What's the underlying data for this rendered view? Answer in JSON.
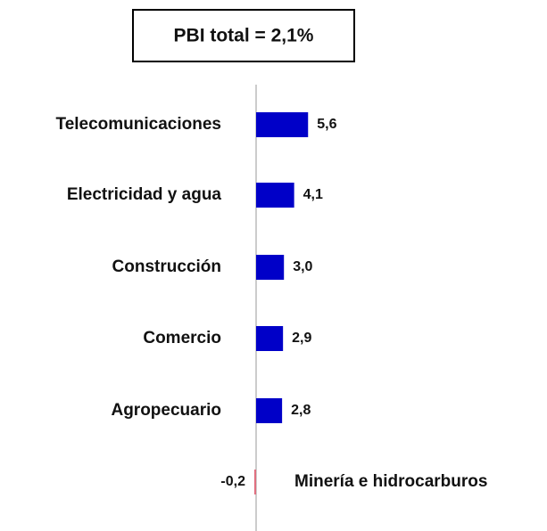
{
  "chart_data": {
    "type": "bar",
    "orientation": "horizontal",
    "title": "PBI total = 2,1%",
    "categories": [
      "Telecomunicaciones",
      "Electricidad y agua",
      "Construcción",
      "Comercio",
      "Agropecuario",
      "Minería e hidrocarburos"
    ],
    "values": [
      5.6,
      4.1,
      3.0,
      2.9,
      2.8,
      -0.2
    ],
    "value_labels": [
      "5,6",
      "4,1",
      "3,0",
      "2,9",
      "2,8",
      "-0,2"
    ],
    "colors": [
      "#0000c8",
      "#0000c8",
      "#0000c8",
      "#0000c8",
      "#0000c8",
      "#e07080"
    ]
  }
}
